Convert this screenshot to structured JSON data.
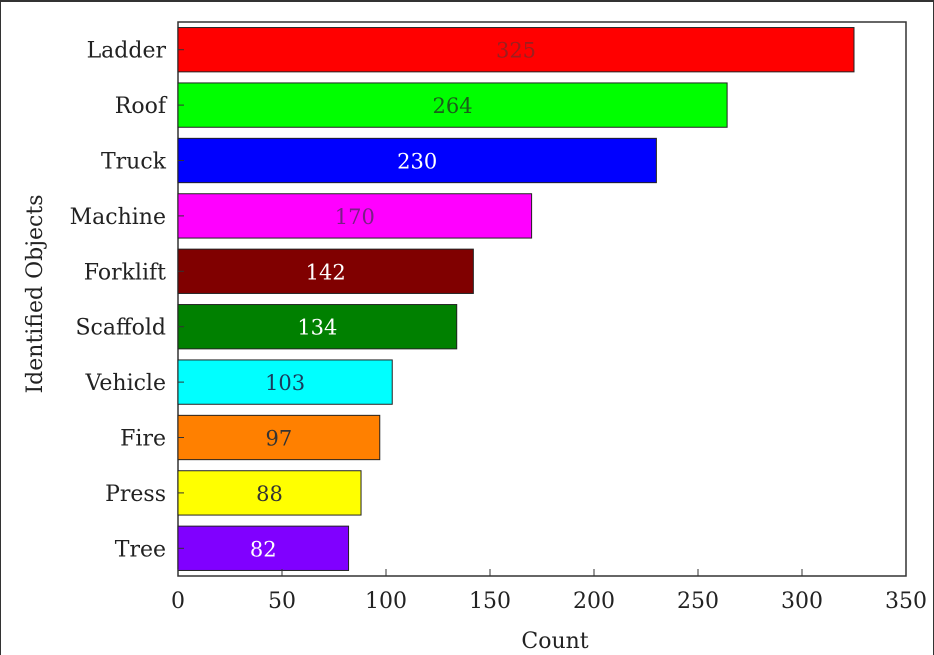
{
  "chart_data": {
    "type": "bar",
    "orientation": "horizontal",
    "title": "",
    "xlabel": "Count",
    "ylabel": "Identified Objects",
    "xlim": [
      0,
      350
    ],
    "x_ticks": [
      "0",
      "50",
      "100",
      "150",
      "200",
      "250",
      "300",
      "350"
    ],
    "grid": false,
    "categories": [
      "Ladder",
      "Roof",
      "Truck",
      "Machine",
      "Forklift",
      "Scaffold",
      "Vehicle",
      "Fire",
      "Press",
      "Tree"
    ],
    "values": [
      325,
      264,
      230,
      170,
      142,
      134,
      103,
      97,
      88,
      82
    ],
    "value_labels": [
      "325",
      "264",
      "230",
      "170",
      "142",
      "134",
      "103",
      "97",
      "88",
      "82"
    ],
    "bar_colors": [
      "#ff0000",
      "#00ff00",
      "#0000ff",
      "#ff00ff",
      "#800000",
      "#008000",
      "#00ffff",
      "#ff8000",
      "#ffff00",
      "#8000ff"
    ],
    "label_colors": [
      "#9b1f1f",
      "#1a5c1a",
      "#ffffff",
      "#7a1f86",
      "#ffffff",
      "#ffffff",
      "#1a3a5c",
      "#333333",
      "#333333",
      "#ffffff"
    ]
  }
}
